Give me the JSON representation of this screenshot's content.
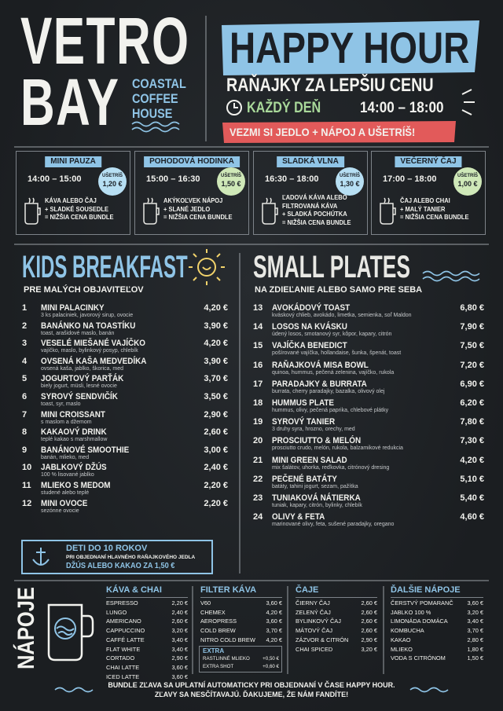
{
  "brand": {
    "name_line1": "VETRO",
    "name_line2": "BAY",
    "tagline": [
      "COASTAL",
      "COFFEE",
      "HOUSE"
    ]
  },
  "happy_hour": {
    "title": "HAPPY HOUR",
    "subtitle": "RAŇAJKY ZA LEPŠIU CENU",
    "days": "KAŽDÝ DEŇ",
    "time": "14:00 – 18:00",
    "banner": "VEZMI SI JEDLO + NÁPOJ A UŠETRÍŠ!"
  },
  "deals": [
    {
      "title": "MINI PAUZA",
      "time": "14:00 – 15:00",
      "save_label": "UŠETRÍŠ",
      "save": "1,20 €",
      "lines": [
        "KÁVA ALEBO ČAJ",
        "+ SLADKÉ SOUSEDLE",
        "= NIŽŠIA CENA BUNDLE"
      ]
    },
    {
      "title": "POHODOVÁ HODINKA",
      "time": "15:00 – 16:30",
      "save_label": "UŠETRÍŠ",
      "save": "1,50 €",
      "lines": [
        "AKÝKOĽVEK NÁPOJ",
        "+ SLANÉ JEDLO",
        "= NIŽŠIA CENA BUNDLE"
      ]
    },
    {
      "title": "SLADKÁ VLNA",
      "time": "16:30 – 18:00",
      "save_label": "UŠETRÍŠ",
      "save": "1,30 €",
      "lines": [
        "ĽADOVÁ KÁVA ALEBO",
        "FILTROVANÁ KÁVA",
        "+ SLADKÁ POCHÚTKA",
        "= NIŽŠIA CENA BUNDLE"
      ]
    },
    {
      "title": "VEČERNÝ ČAJ",
      "time": "17:00 – 18:00",
      "save_label": "UŠETRÍŠ",
      "save": "1,00 €",
      "lines": [
        "ČAJ ALEBO CHAI",
        "+ MALÝ TANIER",
        "= NIŽŠIA CENA BUNDLE"
      ]
    }
  ],
  "kids": {
    "title": "KIDS BREAKFAST",
    "subtitle": "PRE MALÝCH OBJAVITEĽOV",
    "items": [
      {
        "num": "1",
        "name": "MINI PALACINKY",
        "desc": "3 ks palaciniek, javorový sirup, ovocie",
        "price": "4,20 €"
      },
      {
        "num": "2",
        "name": "BANÁNKO NA TOASTÍKU",
        "desc": "toast, arašidové maslo, banán",
        "price": "3,90 €"
      },
      {
        "num": "3",
        "name": "VESELÉ MIEŠANÉ VAJÍČKO",
        "desc": "vajíčko, maslo, bylinkový posyp, chlebík",
        "price": "4,20 €"
      },
      {
        "num": "4",
        "name": "OVSENÁ KAŠA MEDVEDÍKA",
        "desc": "ovsená kaša, jablko, škorica, med",
        "price": "3,90 €"
      },
      {
        "num": "5",
        "name": "JOGURTOVÝ PARŤÁK",
        "desc": "biely jogurt, müsli, lesné ovocie",
        "price": "3,70 €"
      },
      {
        "num": "6",
        "name": "SYROVÝ SENDVIČÍK",
        "desc": "toast, syr, maslo",
        "price": "3,50 €"
      },
      {
        "num": "7",
        "name": "MINI CROISSANT",
        "desc": "s maslom a džemom",
        "price": "2,90 €"
      },
      {
        "num": "8",
        "name": "KAKAOVÝ DRINK",
        "desc": "teplé kakao s marshmallow",
        "price": "2,60 €"
      },
      {
        "num": "9",
        "name": "BANÁNOVÉ SMOOTHIE",
        "desc": "banán, mlieko, med",
        "price": "3,00 €"
      },
      {
        "num": "10",
        "name": "JABLKOVÝ DŽÚS",
        "desc": "100 % lisované jablko",
        "price": "2,40 €"
      },
      {
        "num": "11",
        "name": "MLIEKO S MEDOM",
        "desc": "studené alebo teplé",
        "price": "2,20 €"
      },
      {
        "num": "12",
        "name": "MINI OVOCE",
        "desc": "sezónne ovocie",
        "price": "2,20 €"
      }
    ],
    "note": {
      "title": "DETI DO 10 ROKOV",
      "text": "PRI OBJEDNANÍ HLAVNÉHO RAŇAJKOVÉHO JEDLA",
      "offer": "DŽÚS ALEBO KAKAO ZA 1,50 €"
    }
  },
  "small_plates": {
    "title": "SMALL PLATES",
    "subtitle": "NA ZDIEĽANIE ALEBO SAMO PRE SEBA",
    "items": [
      {
        "num": "13",
        "name": "AVOKÁDOVÝ TOAST",
        "desc": "kváskový chlieb, avokádo, limetka, semienka, soľ Maldon",
        "price": "6,80 €"
      },
      {
        "num": "14",
        "name": "LOSOS NA KVÁSKU",
        "desc": "údený losos, smotanový syr, kôpor, kapary, citrón",
        "price": "7,90 €"
      },
      {
        "num": "15",
        "name": "VAJÍČKA BENEDICT",
        "desc": "pošírované vajíčka, hollandaise, šunka, špenát, toast",
        "price": "7,50 €"
      },
      {
        "num": "16",
        "name": "RAŇAJKOVÁ MISA BOWL",
        "desc": "quinoa, hummus, pečená zelenina, vajíčko, rukola",
        "price": "7,20 €"
      },
      {
        "num": "17",
        "name": "PARADAJKY & BURRATA",
        "desc": "burrata, cherry paradajky, bazalka, olivový olej",
        "price": "6,90 €"
      },
      {
        "num": "18",
        "name": "HUMMUS PLATE",
        "desc": "hummus, olivy, pečená paprika, chlebové plátky",
        "price": "6,20 €"
      },
      {
        "num": "19",
        "name": "SYROVÝ TANIER",
        "desc": "3 druhy syra, hrozno, orechy, med",
        "price": "7,80 €"
      },
      {
        "num": "20",
        "name": "PROSCIUTTO & MELÓN",
        "desc": "prosciutto crudo, melón, rukola, balzamikové redukcia",
        "price": "7,30 €"
      },
      {
        "num": "21",
        "name": "MINI GREEN SALAD",
        "desc": "mix šalátov, uhorka, reďkovka, citrónový dresing",
        "price": "4,20 €"
      },
      {
        "num": "22",
        "name": "PEČENÉ BATÁTY",
        "desc": "batáty, tahini jogurt, sezam, pažítka",
        "price": "5,10 €"
      },
      {
        "num": "23",
        "name": "TUNIAKOVÁ NÁTIERKA",
        "desc": "tuniak, kapary, citrón, bylinky, chlebík",
        "price": "5,40 €"
      },
      {
        "num": "24",
        "name": "OLIVY & FETA",
        "desc": "marinované olivy, feta, sušené paradajky, oregano",
        "price": "4,60 €"
      }
    ]
  },
  "drinks": {
    "title": "NÁPOJE",
    "groups": [
      {
        "title": "KÁVA & CHAI",
        "items": [
          {
            "name": "ESPRESSO",
            "price": "2,20 €"
          },
          {
            "name": "LUNGO",
            "price": "2,40 €"
          },
          {
            "name": "AMERICANO",
            "price": "2,60 €"
          },
          {
            "name": "CAPPUCCINO",
            "price": "3,20 €"
          },
          {
            "name": "CAFFÉ LATTE",
            "price": "3,40 €"
          },
          {
            "name": "FLAT WHITE",
            "price": "3,40 €"
          },
          {
            "name": "CORTADO",
            "price": "2,90 €"
          },
          {
            "name": "CHAI LATTE",
            "price": "3,60 €"
          },
          {
            "name": "ICED LATTE",
            "price": "3,60 €"
          }
        ]
      },
      {
        "title": "FILTER KÁVA",
        "items": [
          {
            "name": "V60",
            "price": "3,60 €"
          },
          {
            "name": "CHEMEX",
            "price": "4,20 €"
          },
          {
            "name": "AEROPRESS",
            "price": "3,60 €"
          },
          {
            "name": "COLD BREW",
            "price": "3,70 €"
          },
          {
            "name": "NITRO COLD BREW",
            "price": "4,20 €"
          }
        ],
        "extra": {
          "title": "EXTRA",
          "items": [
            {
              "name": "RASTLINNÉ MLIEKO",
              "price": "+0,50 €"
            },
            {
              "name": "EXTRA SHOT",
              "price": "+0,60 €"
            }
          ]
        }
      },
      {
        "title": "ČAJE",
        "items": [
          {
            "name": "ČIERNY ČAJ",
            "price": "2,60 €"
          },
          {
            "name": "ZELENÝ ČAJ",
            "price": "2,60 €"
          },
          {
            "name": "BYLINKOVÝ ČAJ",
            "price": "2,60 €"
          },
          {
            "name": "MÁTOVÝ ČAJ",
            "price": "2,60 €"
          },
          {
            "name": "ZÁZVOR & CITRÓN",
            "price": "2,90 €"
          },
          {
            "name": "CHAI SPICED",
            "price": "3,20 €"
          }
        ]
      },
      {
        "title": "ĎALŠIE NÁPOJE",
        "items": [
          {
            "name": "ČERSTVÝ POMARANČ",
            "price": "3,60 €"
          },
          {
            "name": "JABLKO 100 %",
            "price": "3,20 €"
          },
          {
            "name": "LIMONÁDA DOMÁCA",
            "price": "3,40 €"
          },
          {
            "name": "KOMBUCHA",
            "price": "3,70 €"
          },
          {
            "name": "KAKAO",
            "price": "2,80 €"
          },
          {
            "name": "MLIEKO",
            "price": "1,80 €"
          },
          {
            "name": "VODA S CITRÓNOM",
            "price": "1,50 €"
          }
        ]
      }
    ]
  },
  "footer": [
    "BUNDLE ZĽAVA SA UPLATNÍ AUTOMATICKY PRI OBJEDNANÍ V ČASE HAPPY HOUR.",
    "ZĽAVY SA NESČÍTAVAJÚ. ĎAKUJEME, ŽE NÁM FANDÍTE!"
  ]
}
